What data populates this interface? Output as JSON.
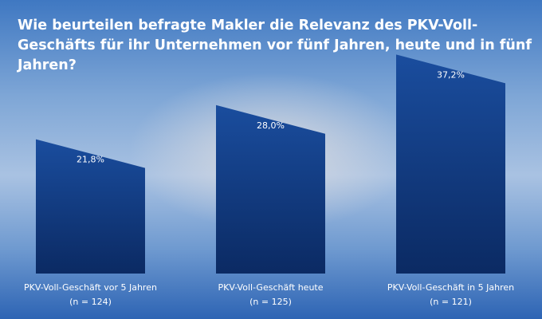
{
  "chart_data": {
    "type": "bar",
    "title": "Wie beurteilen befragte Makler die Relevanz des PKV-Voll-Geschäfts für ihr Unternehmen vor fünf Jahren, heute und in fünf Jahren?",
    "categories": [
      "PKV-Voll-Geschäft vor 5 Jahren",
      "PKV-Voll-Geschäft heute",
      "PKV-Voll-Geschäft in 5 Jahren"
    ],
    "category_notes": [
      "(n = 124)",
      "(n = 125)",
      "(n = 121)"
    ],
    "values": [
      21.8,
      28.0,
      37.2
    ],
    "value_labels": [
      "21,8%",
      "28,0%",
      "37,2%"
    ],
    "color": "#1a4d9e"
  }
}
